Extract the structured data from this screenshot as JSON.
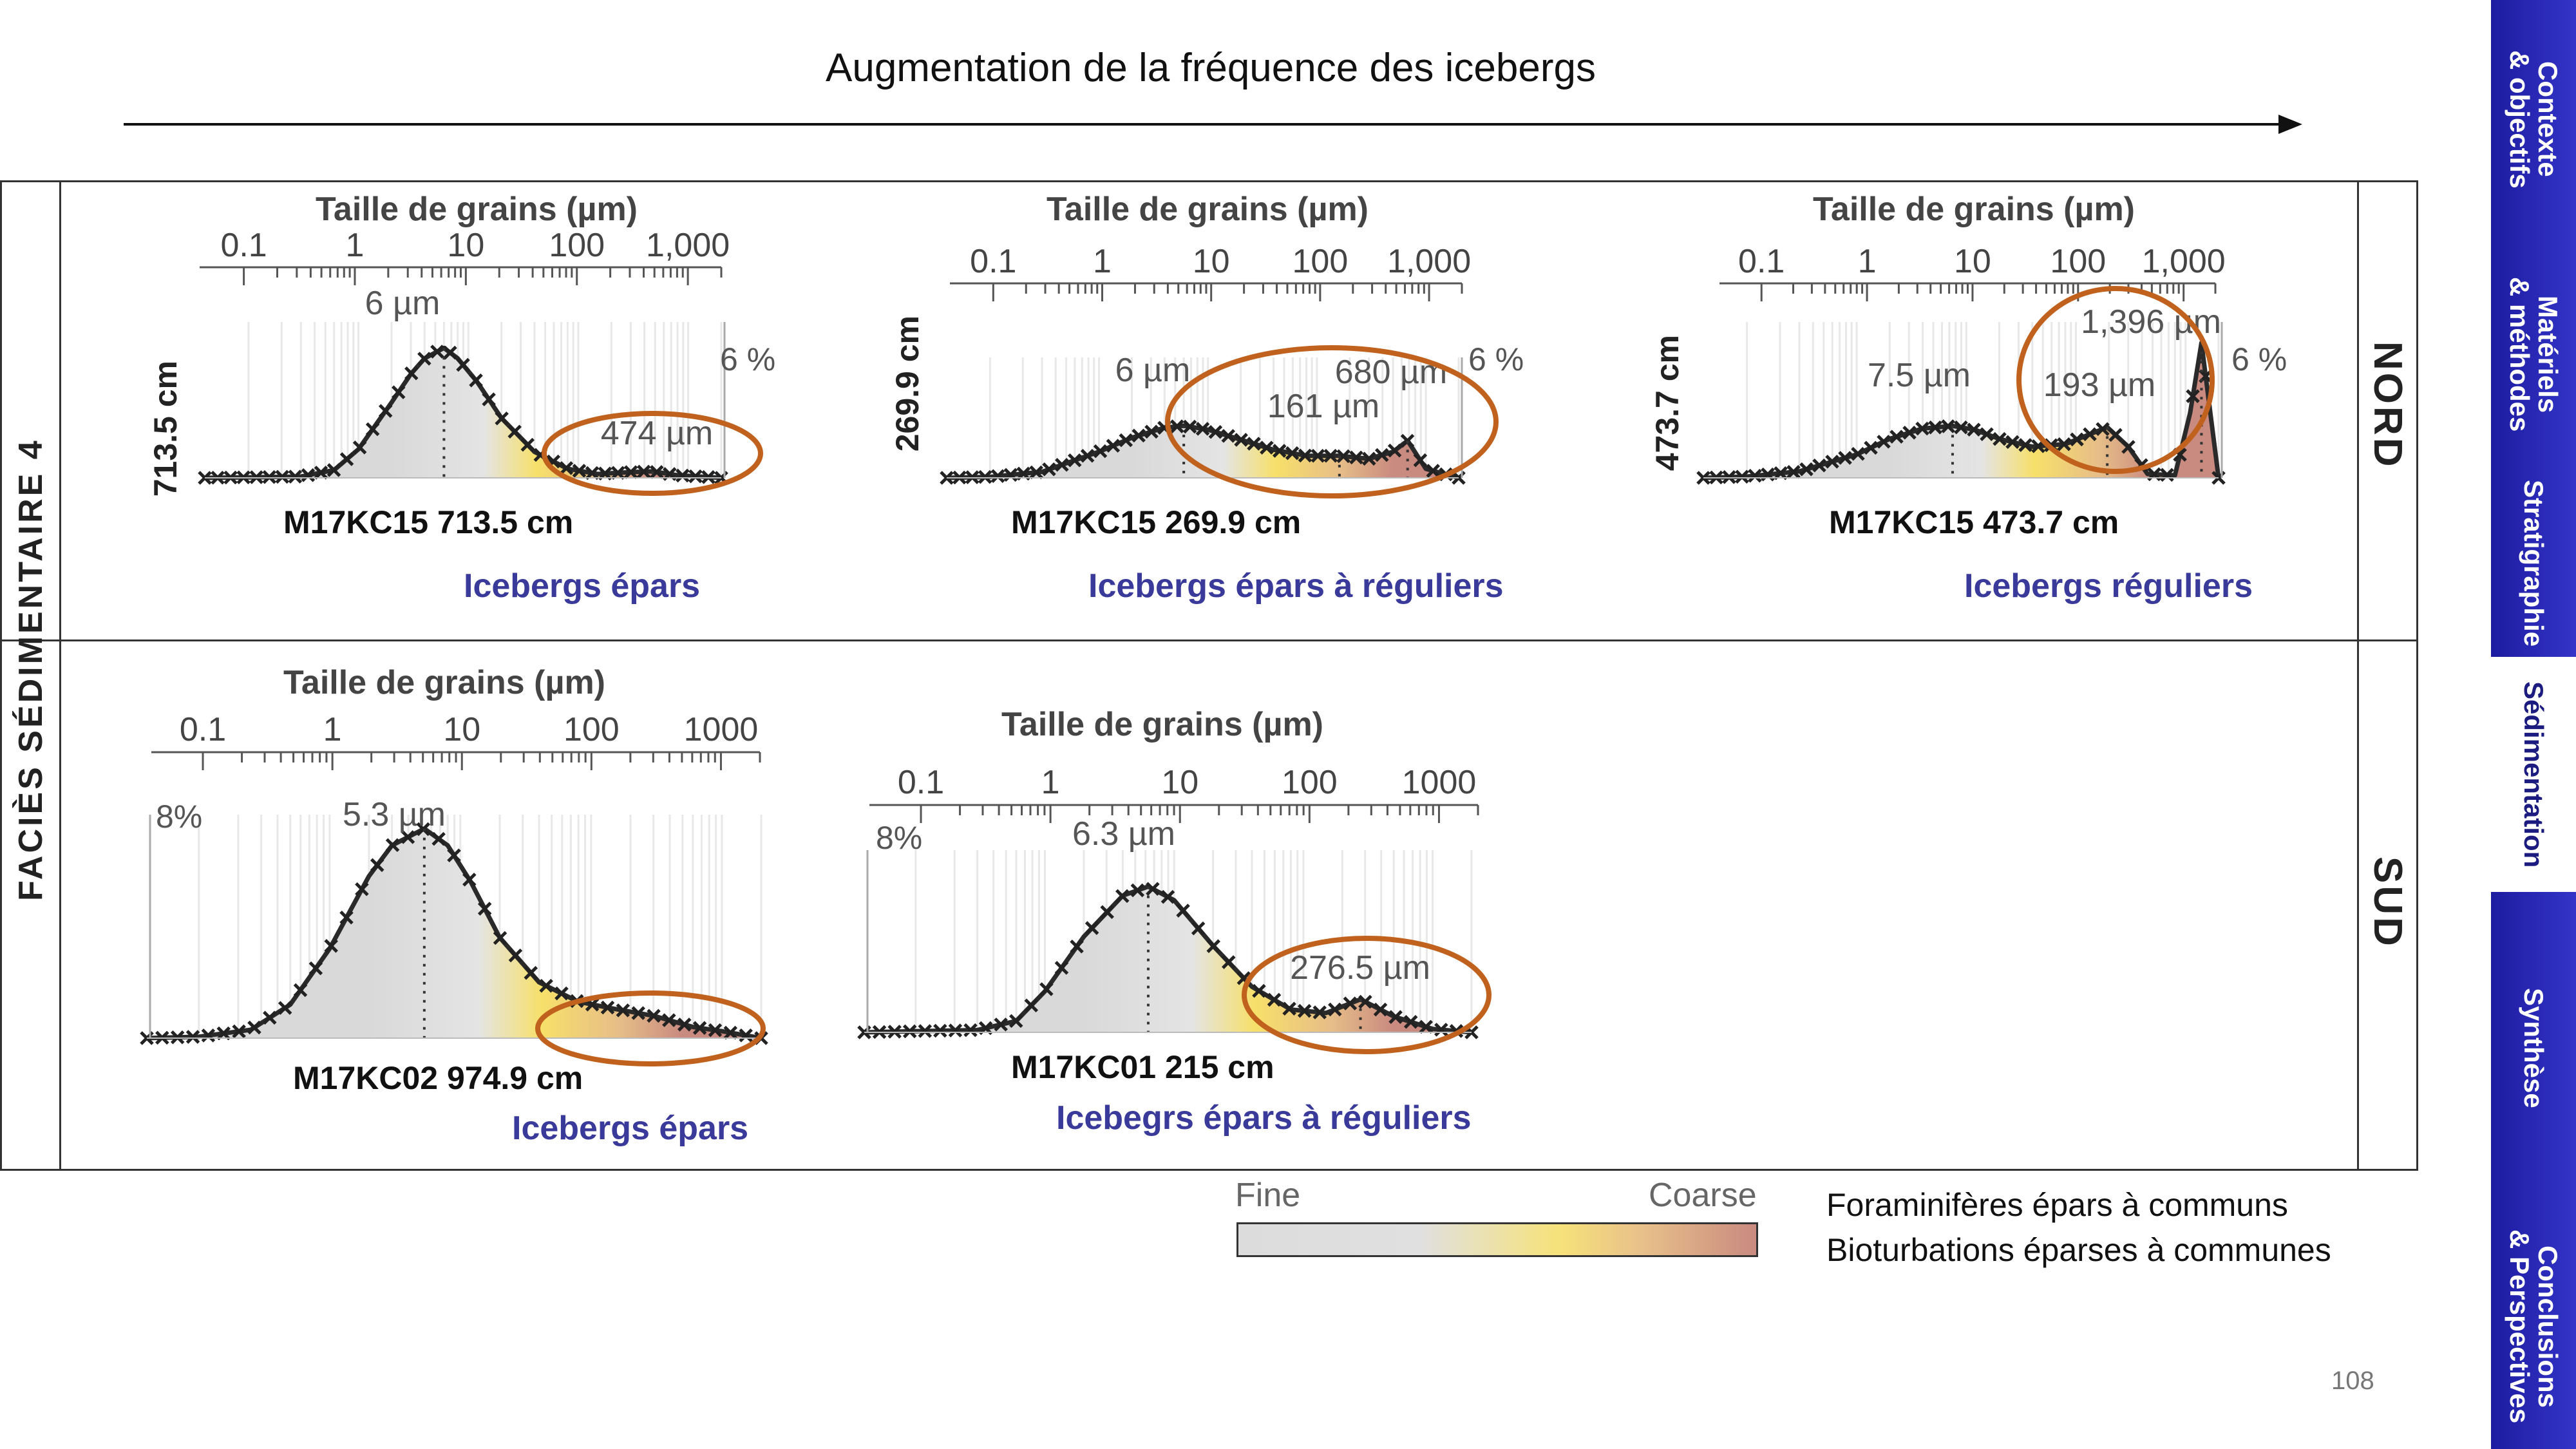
{
  "slide": {
    "title": "Augmentation de la fréquence des icebergs",
    "row_label": "FACIÈS SÉDIMENTAIRE 4",
    "region_north": "NORD",
    "region_south": "SUD",
    "page_number": "108",
    "legend": {
      "fine": "Fine",
      "coarse": "Coarse",
      "note1": "Foraminifères épars à communs",
      "note2": "Bioturbations éparses à communes"
    }
  },
  "nav": {
    "tabs": [
      {
        "label": "Contexte\n& objectifs"
      },
      {
        "label": "Matériels\n& méthodes"
      },
      {
        "label": "Stratigraphie"
      },
      {
        "label": "Sédimentation"
      },
      {
        "label": "Synthèse"
      },
      {
        "label": "Conclusions\n& Perspectives"
      }
    ]
  },
  "colors": {
    "nav_bg": "#2a2ab8",
    "nav_active_text": "#1c1c80",
    "caption": "#3a3a9a",
    "ellipse": "#c0621e",
    "fine": "#d9d9d9",
    "mid": "#f7e06a",
    "coarse": "#c98a80"
  },
  "chart_data": [
    {
      "type": "area",
      "region": "NORD",
      "axis_title": "Taille de grains (µm)",
      "tick_labels": [
        "0.1",
        "1",
        "10",
        "100",
        "1,000"
      ],
      "x_scale": "log",
      "xlim": [
        0.04,
        2000
      ],
      "ylim": [
        0,
        6
      ],
      "depth_label": "713.5 cm",
      "y_max_label": "6 %",
      "sample_label": "M17KC15 713.5 cm",
      "caption": "Icebergs épars",
      "peak_labels": [
        "6 µm",
        "474 µm"
      ],
      "modes": [
        {
          "x": 6,
          "y": 5.0
        },
        {
          "x": 474,
          "y": 0.25
        }
      ],
      "x": [
        0.04,
        0.1,
        0.3,
        0.6,
        1,
        2,
        3,
        4,
        6,
        8,
        12,
        20,
        40,
        80,
        150,
        300,
        474,
        800,
        2000
      ],
      "y": [
        0,
        0.02,
        0.05,
        0.3,
        1.1,
        2.9,
        4.0,
        4.6,
        5.0,
        4.6,
        3.7,
        2.3,
        1.0,
        0.35,
        0.15,
        0.22,
        0.25,
        0.1,
        0
      ]
    },
    {
      "type": "area",
      "region": "NORD",
      "axis_title": "Taille de grains (µm)",
      "tick_labels": [
        "0.1",
        "1",
        "10",
        "100",
        "1,000"
      ],
      "x_scale": "log",
      "xlim": [
        0.04,
        2000
      ],
      "ylim": [
        0,
        6
      ],
      "depth_label": "269.9 cm",
      "y_max_label": "6 %",
      "sample_label": "M17KC15 269.9 cm",
      "caption": "Icebergs épars à réguliers",
      "peak_labels": [
        "6 µm",
        "161 µm",
        "680 µm"
      ],
      "modes": [
        {
          "x": 6,
          "y": 2.6
        },
        {
          "x": 161,
          "y": 1.1
        },
        {
          "x": 680,
          "y": 1.85
        }
      ],
      "x": [
        0.04,
        0.1,
        0.3,
        1,
        2,
        4,
        6,
        10,
        20,
        40,
        80,
        161,
        300,
        500,
        680,
        1000,
        2000
      ],
      "y": [
        0,
        0.05,
        0.3,
        1.3,
        2.0,
        2.5,
        2.6,
        2.4,
        1.9,
        1.4,
        1.1,
        1.1,
        0.95,
        1.3,
        1.85,
        0.45,
        0
      ]
    },
    {
      "type": "area",
      "region": "NORD",
      "axis_title": "Taille de grains (µm)",
      "tick_labels": [
        "0.1",
        "1",
        "10",
        "100",
        "1,000"
      ],
      "x_scale": "log",
      "xlim": [
        0.04,
        2000
      ],
      "ylim": [
        0,
        6
      ],
      "depth_label": "473.7 cm",
      "y_max_label": "6 %",
      "sample_label": "M17KC15 473.7 cm",
      "caption": "Icebergs réguliers",
      "peak_labels": [
        "7.5 µm",
        "193 µm",
        "1,396 µm"
      ],
      "modes": [
        {
          "x": 7.5,
          "y": 2.0
        },
        {
          "x": 193,
          "y": 1.95
        },
        {
          "x": 1396,
          "y": 5.2
        }
      ],
      "x": [
        0.04,
        0.1,
        0.3,
        1,
        2,
        4,
        7.5,
        12,
        20,
        40,
        80,
        193,
        300,
        450,
        800,
        1100,
        1396,
        2000
      ],
      "y": [
        0,
        0.05,
        0.25,
        0.9,
        1.5,
        1.9,
        2.0,
        1.85,
        1.5,
        1.2,
        1.3,
        1.95,
        1.2,
        0.15,
        0.1,
        2.5,
        5.2,
        0
      ]
    },
    {
      "type": "area",
      "region": "SUD",
      "axis_title": "Taille de grains (µm)",
      "tick_labels": [
        "0.1",
        "1",
        "10",
        "100",
        "1000"
      ],
      "x_scale": "log",
      "xlim": [
        0.04,
        2000
      ],
      "ylim": [
        0,
        8
      ],
      "y_max_label": "8%",
      "sample_label": "M17KC02 974.9 cm",
      "caption": "Icebergs épars",
      "peak_labels": [
        "5.3 µm"
      ],
      "modes": [
        {
          "x": 5.3,
          "y": 7.5
        }
      ],
      "x": [
        0.04,
        0.1,
        0.25,
        0.5,
        1,
        2,
        3,
        5.3,
        8,
        12,
        20,
        40,
        80,
        150,
        300,
        600,
        1000,
        2000
      ],
      "y": [
        0,
        0.05,
        0.3,
        1.2,
        3.2,
        5.8,
        6.9,
        7.5,
        6.9,
        5.6,
        3.6,
        2.0,
        1.3,
        1.05,
        0.8,
        0.4,
        0.25,
        0
      ]
    },
    {
      "type": "area",
      "region": "SUD",
      "axis_title": "Taille de grains (µm)",
      "tick_labels": [
        "0.1",
        "1",
        "10",
        "100",
        "1000"
      ],
      "x_scale": "log",
      "xlim": [
        0.04,
        2000
      ],
      "ylim": [
        0,
        8
      ],
      "y_max_label": "8%",
      "sample_label": "M17KC01 215 cm",
      "caption": "Icebegrs épars à réguliers",
      "peak_labels": [
        "6.3 µm",
        "276.5 µm"
      ],
      "modes": [
        {
          "x": 6.3,
          "y": 6.4
        },
        {
          "x": 276.5,
          "y": 1.45
        }
      ],
      "x": [
        0.04,
        0.1,
        0.3,
        0.6,
        1,
        2,
        4,
        6.3,
        10,
        20,
        40,
        80,
        150,
        276.5,
        500,
        1000,
        2000
      ],
      "y": [
        0,
        0.05,
        0.1,
        0.5,
        1.8,
        4.2,
        6.0,
        6.4,
        5.8,
        3.8,
        2.0,
        1.0,
        0.85,
        1.45,
        0.7,
        0.15,
        0
      ]
    }
  ]
}
